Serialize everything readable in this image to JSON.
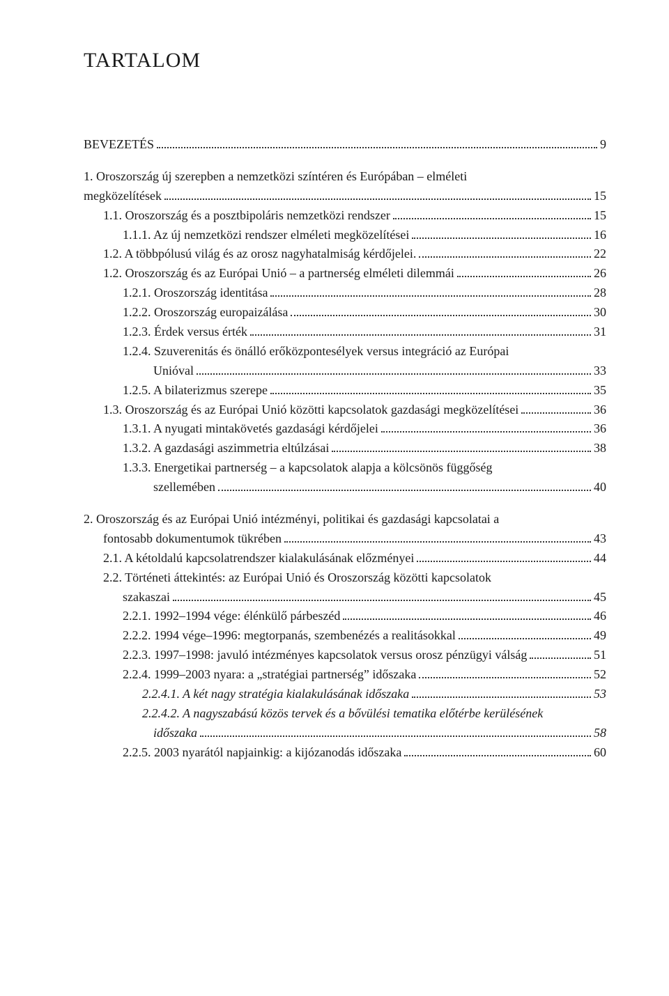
{
  "title": "TARTALOM",
  "rows": [
    {
      "indent": 0,
      "label": "BEVEZETÉS",
      "page": "9",
      "cls": ""
    },
    {
      "gap": true
    },
    {
      "indent": 0,
      "label": "1. Oroszország új szerepben a nemzetközi színtéren és Európában – elméleti",
      "cls": ""
    },
    {
      "indent": 0,
      "label": "megközelítések",
      "page": "15",
      "cls": "",
      "cont": true
    },
    {
      "indent": 1,
      "label": "1.1. Oroszország és a posztbipoláris nemzetközi rendszer",
      "page": "15",
      "cls": ""
    },
    {
      "indent": 2,
      "label": "1.1.1. Az új nemzetközi rendszer elméleti megközelítései",
      "page": "16",
      "cls": ""
    },
    {
      "indent": 1,
      "label": "1.2. A többpólusú világ és az orosz nagyhatalmiság kérdőjelei.",
      "page": "22",
      "cls": ""
    },
    {
      "indent": 1,
      "label": "1.2. Oroszország és az Európai Unió – a partnerség elméleti dilemmái",
      "page": "26",
      "cls": ""
    },
    {
      "indent": 2,
      "label": "1.2.1. Oroszország identitása",
      "page": "28",
      "cls": ""
    },
    {
      "indent": 2,
      "label": "1.2.2. Oroszország europaizálása",
      "page": "30",
      "cls": ""
    },
    {
      "indent": 2,
      "label": "1.2.3. Érdek versus érték",
      "page": "31",
      "cls": ""
    },
    {
      "indent": 2,
      "label": "1.2.4. Szuverenitás és önálló erőközpontesélyek versus integráció az Európai",
      "cls": ""
    },
    {
      "indent": 2,
      "label": "Unióval",
      "page": "33",
      "cls": "",
      "cont": true,
      "ipad": "ix"
    },
    {
      "indent": 2,
      "label": "1.2.5. A bilaterizmus szerepe",
      "page": "35",
      "cls": ""
    },
    {
      "indent": 1,
      "label": "1.3. Oroszország és az Európai Unió közötti kapcsolatok gazdasági megközelítései",
      "page": "36",
      "cls": ""
    },
    {
      "indent": 2,
      "label": "1.3.1. A nyugati mintakövetés gazdasági kérdőjelei",
      "page": "36",
      "cls": ""
    },
    {
      "indent": 2,
      "label": "1.3.2. A gazdasági aszimmetria eltúlzásai",
      "page": "38",
      "cls": ""
    },
    {
      "indent": 2,
      "label": "1.3.3. Energetikai partnerség – a kapcsolatok alapja a kölcsönös függőség",
      "cls": ""
    },
    {
      "indent": 2,
      "label": "szellemében",
      "page": "40",
      "cls": "",
      "cont": true,
      "ipad": "ix"
    },
    {
      "gap": true
    },
    {
      "indent": 0,
      "label": "2. Oroszország és az Európai Unió intézményi, politikai és gazdasági kapcsolatai a",
      "cls": ""
    },
    {
      "indent": 0,
      "label": "fontosabb dokumentumok tükrében",
      "page": "43",
      "cls": "",
      "cont": true,
      "ipad": "i1"
    },
    {
      "indent": 1,
      "label": "2.1. A kétoldalú kapcsolatrendszer kialakulásának előzményei",
      "page": "44",
      "cls": ""
    },
    {
      "indent": 1,
      "label": "2.2. Történeti áttekintés: az Európai Unió és Oroszország közötti kapcsolatok",
      "cls": ""
    },
    {
      "indent": 1,
      "label": "szakaszai",
      "page": "45",
      "cls": "",
      "cont": true,
      "ipad": "i2"
    },
    {
      "indent": 2,
      "label": "2.2.1. 1992–1994 vége: élénkülő párbeszéd",
      "page": "46",
      "cls": ""
    },
    {
      "indent": 2,
      "label": "2.2.2. 1994 vége–1996: megtorpanás, szembenézés a realitásokkal",
      "page": "49",
      "cls": ""
    },
    {
      "indent": 2,
      "label": "2.2.3. 1997–1998: javuló intézményes kapcsolatok versus orosz pénzügyi válság",
      "page": "51",
      "cls": ""
    },
    {
      "indent": 2,
      "label": "2.2.4. 1999–2003 nyara: a „stratégiai partnerség” időszaka",
      "page": "52",
      "cls": ""
    },
    {
      "indent": 3,
      "label": "2.2.4.1. A két nagy stratégia kialakulásának időszaka",
      "page": "53",
      "cls": "italic"
    },
    {
      "indent": 3,
      "label": "2.2.4.2. A nagyszabású közös tervek és a bővülési tematika előtérbe kerülésének",
      "cls": "italic"
    },
    {
      "indent": 3,
      "label": "időszaka",
      "page": "58",
      "cls": "italic",
      "cont": true,
      "ipad": "ix"
    },
    {
      "indent": 2,
      "label": "2.2.5. 2003 nyarától napjainkig: a kijózanodás időszaka",
      "page": "60",
      "cls": ""
    }
  ]
}
